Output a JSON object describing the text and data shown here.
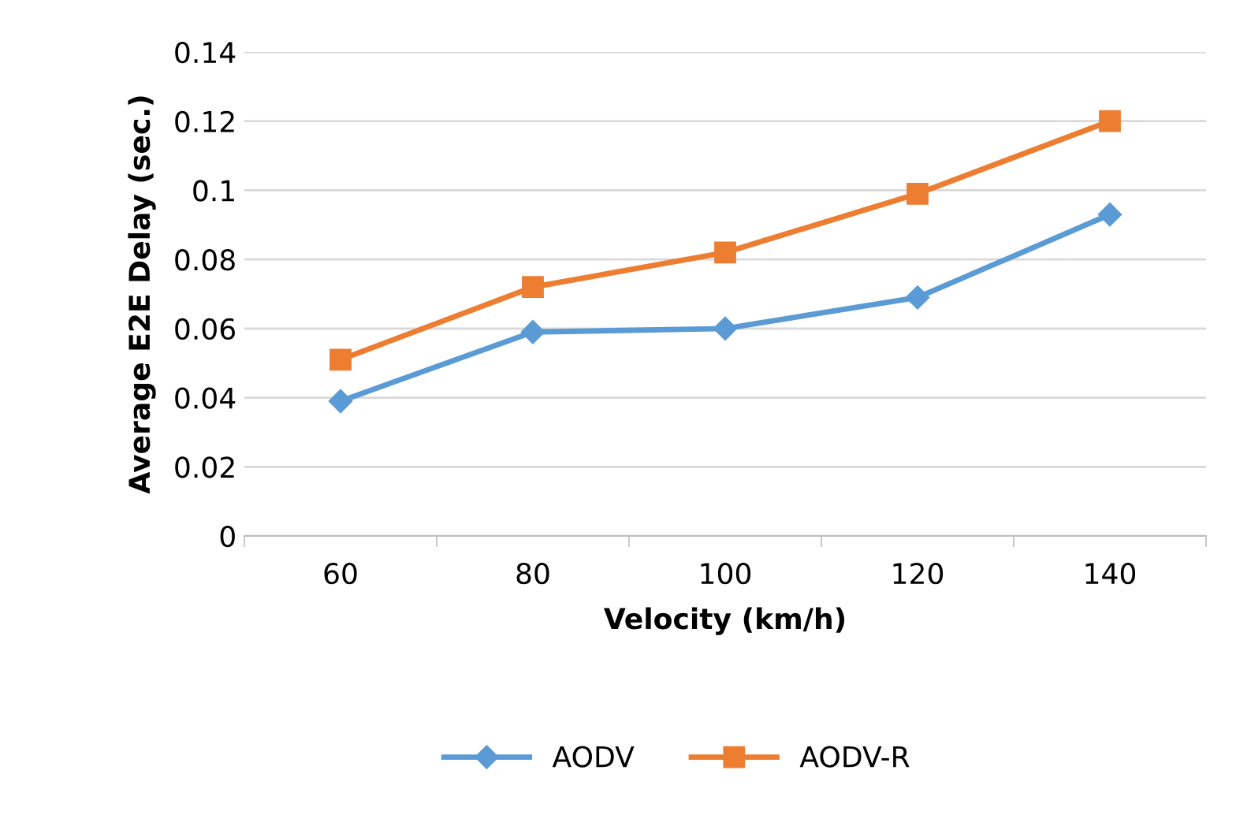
{
  "chart_data": {
    "type": "line",
    "xlabel": "Velocity (km/h)",
    "ylabel": "Average E2E Delay (sec.)",
    "categories": [
      "60",
      "80",
      "100",
      "120",
      "140"
    ],
    "series": [
      {
        "name": "AODV",
        "color": "#5b9bd5",
        "marker": "diamond",
        "values": [
          0.039,
          0.059,
          0.06,
          0.069,
          0.093
        ]
      },
      {
        "name": "AODV-R",
        "color": "#ed7d31",
        "marker": "square",
        "values": [
          0.051,
          0.072,
          0.082,
          0.099,
          0.12
        ]
      }
    ],
    "ylim": [
      0,
      0.14
    ],
    "yticks": [
      0,
      0.02,
      0.04,
      0.06,
      0.08,
      0.1,
      0.12,
      0.14
    ],
    "grid": "y",
    "legend": "bottom",
    "line_style": "solid"
  }
}
